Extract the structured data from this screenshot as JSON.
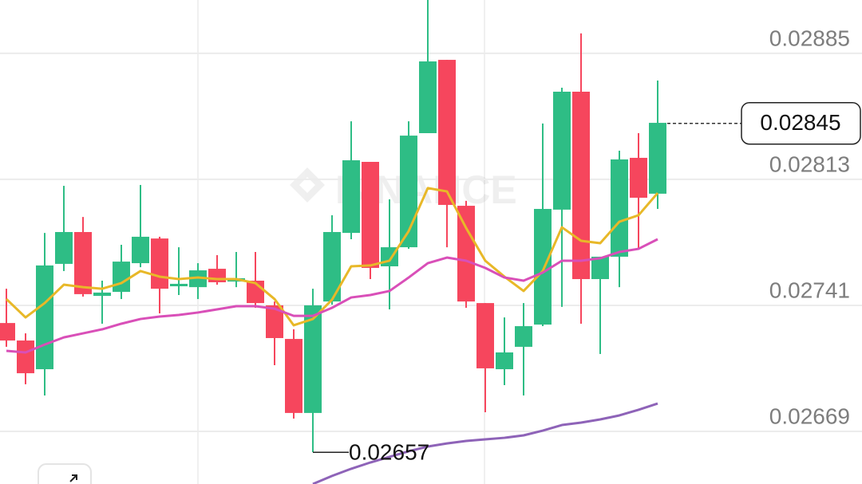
{
  "chart_data": {
    "type": "candlestick",
    "watermark": "BINANCE",
    "open": [
      0.027309,
      0.027209,
      0.027045,
      0.027647,
      0.027829,
      0.027464,
      0.027487,
      0.027651,
      0.027792,
      0.027519,
      0.027514,
      0.027619,
      0.027546,
      0.027551,
      0.02741,
      0.027218,
      0.026795,
      0.027432,
      0.027824,
      0.02823,
      0.027633,
      0.027742,
      0.028394,
      0.028813,
      0.027979,
      0.027423,
      0.027045,
      0.027173,
      0.0273,
      0.027957,
      0.028631,
      0.02756,
      0.027688,
      0.028253,
      0.028048
    ],
    "high": [
      0.027505,
      0.02725,
      0.027824,
      0.028093,
      0.027915,
      0.027551,
      0.027756,
      0.028098,
      0.027802,
      0.027742,
      0.027651,
      0.027697,
      0.027715,
      0.027715,
      0.027432,
      0.027273,
      0.027505,
      0.027925,
      0.028462,
      0.02823,
      0.028016,
      0.028462,
      0.029155,
      0.028813,
      0.028007,
      0.027423,
      0.027341,
      0.027423,
      0.028449,
      0.028654,
      0.028964,
      0.027688,
      0.028294,
      0.028394,
      0.028695
    ],
    "low": [
      0.027173,
      0.026959,
      0.026895,
      0.027606,
      0.02746,
      0.027305,
      0.027446,
      0.027628,
      0.027364,
      0.027469,
      0.027446,
      0.027528,
      0.027514,
      0.027396,
      0.027068,
      0.026763,
      0.026571,
      0.027414,
      0.027788,
      0.02756,
      0.027387,
      0.027733,
      0.028394,
      0.027742,
      0.027396,
      0.026799,
      0.026954,
      0.026895,
      0.027291,
      0.027401,
      0.027305,
      0.027132,
      0.027514,
      0.027733,
      0.027961
    ],
    "close": [
      0.027209,
      0.027022,
      0.027638,
      0.027829,
      0.027474,
      0.027483,
      0.02766,
      0.027802,
      0.027505,
      0.027533,
      0.02761,
      0.027542,
      0.027565,
      0.027423,
      0.027223,
      0.026795,
      0.02741,
      0.027829,
      0.028239,
      0.027624,
      0.027742,
      0.02838,
      0.028804,
      0.027984,
      0.027432,
      0.02705,
      0.027141,
      0.027291,
      0.027961,
      0.028631,
      0.02756,
      0.027688,
      0.028244,
      0.028025,
      0.028453
    ],
    "up_color": "#2ebd85",
    "down_color": "#f6465d",
    "lines": [
      {
        "color": "#e8b828",
        "values": [
          0.027446,
          0.027341,
          0.027423,
          0.027528,
          0.027514,
          0.027505,
          0.027537,
          0.027606,
          0.027574,
          0.02756,
          0.027569,
          0.02756,
          0.02756,
          0.027537,
          0.027446,
          0.027296,
          0.027332,
          0.027442,
          0.027633,
          0.027638,
          0.027665,
          0.027834,
          0.02808,
          0.028061,
          0.027852,
          0.027665,
          0.027574,
          0.027492,
          0.027606,
          0.027856,
          0.027779,
          0.027765,
          0.027888,
          0.027925,
          0.028052
        ]
      },
      {
        "color": "#d94fb8",
        "values": [
          0.02715,
          0.027141,
          0.027186,
          0.027227,
          0.02725,
          0.027273,
          0.027305,
          0.027332,
          0.027346,
          0.027355,
          0.027369,
          0.027387,
          0.027405,
          0.027405,
          0.027391,
          0.02735,
          0.02735,
          0.027396,
          0.027455,
          0.027469,
          0.027492,
          0.027569,
          0.027651,
          0.027683,
          0.027665,
          0.027624,
          0.027569,
          0.027551,
          0.027597,
          0.027665,
          0.027665,
          0.027679,
          0.027715,
          0.027733,
          0.027788
        ]
      },
      {
        "color": "#8e63b8",
        "values": [
          null,
          null,
          null,
          null,
          null,
          null,
          null,
          null,
          null,
          null,
          null,
          null,
          null,
          null,
          null,
          null,
          0.026389,
          0.026435,
          0.026476,
          0.026512,
          0.026544,
          0.026576,
          0.026603,
          0.026621,
          0.026635,
          0.026644,
          0.026653,
          0.026667,
          0.026694,
          0.026726,
          0.02674,
          0.026758,
          0.026781,
          0.026813,
          0.026849
        ]
      }
    ],
    "last_price": 0.02845,
    "low_label": 0.02657,
    "ylim": [
      0.026389,
      0.029155
    ],
    "yticks": [
      0.02669,
      0.02741,
      0.02813,
      0.02885
    ],
    "grid": true
  }
}
